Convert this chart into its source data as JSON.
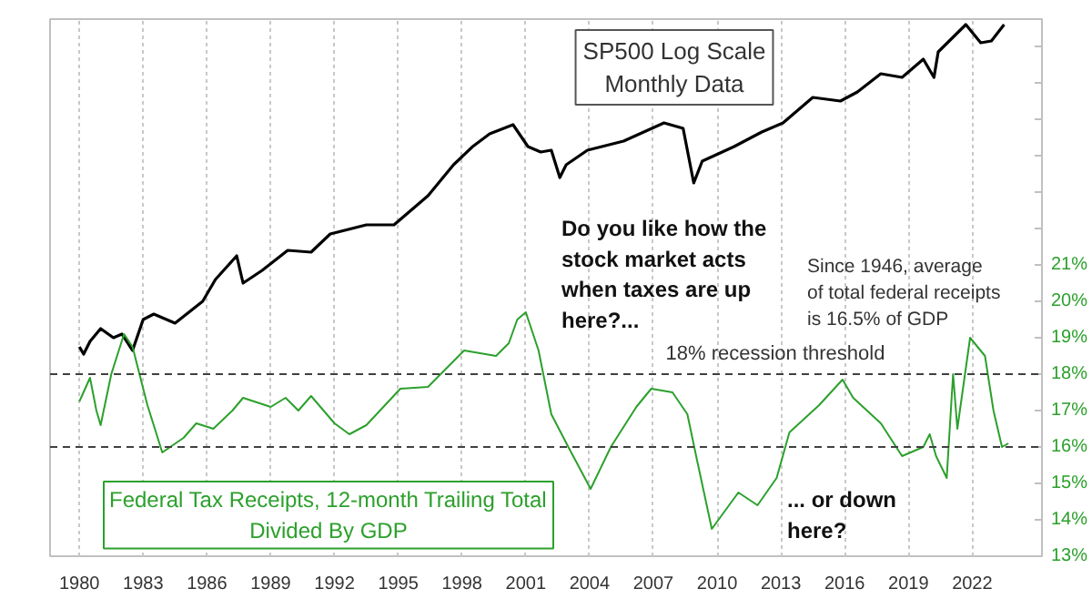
{
  "chart_data": {
    "type": "line",
    "annotations": [
      "SP500 Log Scale\nMonthly Data",
      "Do you like how the\nstock market acts\nwhen taxes are up\nhere?...",
      "Since 1946, average\nof total federal receipts\nis 16.5% of GDP",
      "... or down\nhere?"
    ],
    "xlim": [
      1978.62,
      2025.28
    ],
    "xticks": [
      1980,
      1983,
      1986,
      1989,
      1992,
      1995,
      1998,
      2001,
      2004,
      2007,
      2010,
      2013,
      2016,
      2019,
      2022
    ],
    "ylim": [
      13,
      27.75
    ],
    "yticks": [
      {
        "value": 13,
        "label": "13%"
      },
      {
        "value": 14,
        "label": "14%"
      },
      {
        "value": 15,
        "label": "15%"
      },
      {
        "value": 16,
        "label": "16%"
      },
      {
        "value": 17,
        "label": "17%"
      },
      {
        "value": 18,
        "label": "18%"
      },
      {
        "value": 19,
        "label": "19%"
      },
      {
        "value": 20,
        "label": "20%"
      },
      {
        "value": 21,
        "label": "21%"
      },
      {
        "value": 22,
        "label": null
      },
      {
        "value": 23,
        "label": null
      },
      {
        "value": 24,
        "label": null
      },
      {
        "value": 25,
        "label": null
      },
      {
        "value": 26,
        "label": null
      },
      {
        "value": 27,
        "label": null
      }
    ],
    "grid": "x",
    "legend": false,
    "ref_lines": [
      {
        "axis": "y",
        "value": 18,
        "label": "18% recession threshold",
        "color": "#404040",
        "line_style": "dashed"
      },
      {
        "axis": "y",
        "value": 16,
        "label": null,
        "color": "#404040",
        "line_style": "dashed"
      }
    ],
    "series": [
      {
        "color": "#000000",
        "x": [
          1980.0,
          1980.2,
          1980.5,
          1981.0,
          1981.6,
          1982.0,
          1982.5,
          1983.0,
          1983.5,
          1984.5,
          1985.8,
          1986.4,
          1987.4,
          1987.7,
          1988.6,
          1989.8,
          1990.9,
          1991.8,
          1993.5,
          1994.8,
          1996.4,
          1997.6,
          1998.5,
          1999.3,
          2000.4,
          2001.1,
          2001.7,
          2002.2,
          2002.6,
          2002.9,
          2003.9,
          2005.6,
          2007.5,
          2008.4,
          2008.9,
          2009.3,
          2010.8,
          2012.1,
          2013.1,
          2014.5,
          2015.8,
          2016.6,
          2017.7,
          2018.7,
          2019.7,
          2020.2,
          2020.4,
          2021.7,
          2022.4,
          2022.9,
          2023.5
        ],
        "values": [
          18.75,
          18.55,
          18.9,
          19.25,
          19.0,
          19.1,
          18.65,
          19.5,
          19.65,
          19.4,
          20.0,
          20.6,
          21.25,
          20.5,
          20.85,
          21.4,
          21.35,
          21.85,
          22.1,
          22.1,
          22.9,
          23.75,
          24.25,
          24.6,
          24.85,
          24.25,
          24.1,
          24.15,
          23.4,
          23.75,
          24.15,
          24.4,
          24.9,
          24.75,
          23.25,
          23.85,
          24.25,
          24.65,
          24.9,
          25.6,
          25.5,
          25.75,
          26.25,
          26.15,
          26.65,
          26.15,
          26.85,
          27.6,
          27.1,
          27.15,
          27.6
        ]
      },
      {
        "name": "Federal Tax Receipts, 12-month Trailing Total\nDivided By GDP",
        "color": "#2ca02c",
        "x": [
          1980.0,
          1980.5,
          1980.8,
          1981.0,
          1981.5,
          1982.1,
          1982.5,
          1983.2,
          1983.9,
          1984.9,
          1985.5,
          1986.3,
          1987.2,
          1987.7,
          1989.0,
          1989.7,
          1990.3,
          1990.9,
          1992.0,
          1992.7,
          1993.5,
          1995.1,
          1996.4,
          1998.1,
          1999.6,
          2000.2,
          2000.6,
          2001.0,
          2001.6,
          2002.2,
          2003.0,
          2004.05,
          2005.0,
          2006.2,
          2006.9,
          2007.9,
          2008.6,
          2009.05,
          2009.75,
          2011.0,
          2011.9,
          2012.8,
          2013.4,
          2014.8,
          2015.9,
          2016.4,
          2017.7,
          2018.7,
          2019.7,
          2020.0,
          2020.3,
          2020.8,
          2021.1,
          2021.3,
          2021.9,
          2022.6,
          2023.0,
          2023.4,
          2023.7
        ],
        "values": [
          17.25,
          17.9,
          17.0,
          16.6,
          18.0,
          19.1,
          18.75,
          17.15,
          15.85,
          16.25,
          16.65,
          16.5,
          17.0,
          17.35,
          17.1,
          17.35,
          17.0,
          17.4,
          16.65,
          16.35,
          16.6,
          17.6,
          17.65,
          18.65,
          18.5,
          18.85,
          19.5,
          19.7,
          18.65,
          16.9,
          16.0,
          14.85,
          16.0,
          17.1,
          17.6,
          17.5,
          16.9,
          15.65,
          13.75,
          14.75,
          14.4,
          15.15,
          16.4,
          17.15,
          17.85,
          17.35,
          16.65,
          15.75,
          16.0,
          16.35,
          15.75,
          15.15,
          18.0,
          16.5,
          19.0,
          18.5,
          17.0,
          16.0,
          16.1
        ]
      }
    ]
  }
}
